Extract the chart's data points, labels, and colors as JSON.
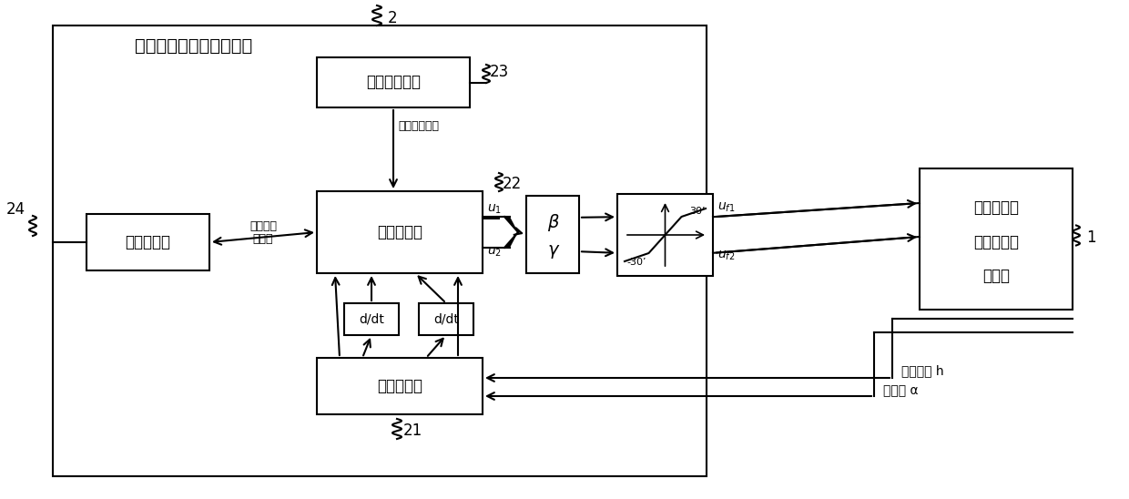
{
  "title": "自适应反演滑模控制装置",
  "label_ac": "自适应控制器",
  "label_sc": "滑模控制器",
  "label_bc": "反演控制器",
  "label_sm": "系统建模器",
  "label_nl_1": "非线性二元",
  "label_nl_2": "机翅气动弹",
  "label_nl_3": "性系统",
  "label_law": "自适应控制律",
  "label_opt_1": "较佳控制",
  "label_opt_2": "率参数",
  "label_heave": "浮沉位移 h",
  "label_pitch": "俧仰角 α",
  "label_beta": "β",
  "label_gamma": "γ",
  "label_ddt": "d/dt",
  "label_u1": "u",
  "label_u1_sub": "1",
  "label_u2": "u",
  "label_u2_sub": "2",
  "label_uf1": "u",
  "label_uf1_sub": "f1",
  "label_uf2": "u",
  "label_uf2_sub": "f2",
  "n2": "2",
  "n22": "22",
  "n23": "23",
  "n24": "24",
  "n21": "21",
  "n1": "1",
  "deg30": "30’",
  "degm30": "-30’"
}
